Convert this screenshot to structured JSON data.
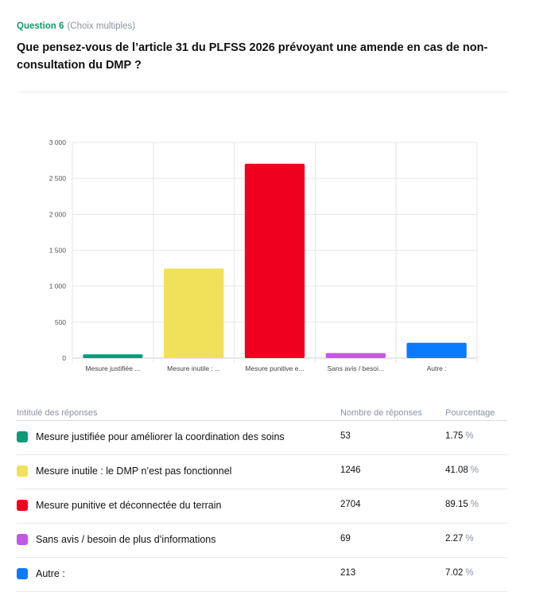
{
  "question": {
    "number": "Question 6",
    "type": "(Choix multiples)",
    "title": "Que pensez-vous de l’article 31 du PLFSS 2026 prévoyant une amende en cas de non-consultation du DMP ?"
  },
  "table": {
    "headers": [
      "Intitulé des réponses",
      "Nombre de réponses",
      "Pourcentage"
    ],
    "percent_sign": "%",
    "rows": [
      {
        "label": "Mesure justifiée pour améliorer la coordination des soins",
        "count": "53",
        "percent": "1.75",
        "color": "#0f9a7a"
      },
      {
        "label": "Mesure inutile : le DMP n’est pas fonctionnel",
        "count": "1246",
        "percent": "41.08",
        "color": "#f0e05a"
      },
      {
        "label": "Mesure punitive et déconnectée du terrain",
        "count": "2704",
        "percent": "89.15",
        "color": "#f0001f"
      },
      {
        "label": "Sans avis / besoin de plus d’informations",
        "count": "69",
        "percent": "2.27",
        "color": "#c557e8"
      },
      {
        "label": "Autre :",
        "count": "213",
        "percent": "7.02",
        "color": "#0a7bff"
      }
    ]
  },
  "chart_data": {
    "type": "bar",
    "categories": [
      "Mesure justifiée ...",
      "Mesure inutile : ...",
      "Mesure punitive e...",
      "Sans avis / besoi...",
      "Autre :"
    ],
    "values": [
      53,
      1246,
      2704,
      69,
      213
    ],
    "colors": [
      "#0f9a7a",
      "#f0e05a",
      "#f0001f",
      "#c557e8",
      "#0a7bff"
    ],
    "yticks": [
      0,
      500,
      1000,
      1500,
      2000,
      2500,
      3000
    ],
    "ytick_labels": [
      "0",
      "500",
      "1 000",
      "1 500",
      "2 000",
      "2 500",
      "3 000"
    ],
    "ylim": [
      0,
      3000
    ],
    "grid": true,
    "title": "",
    "xlabel": "",
    "ylabel": ""
  }
}
